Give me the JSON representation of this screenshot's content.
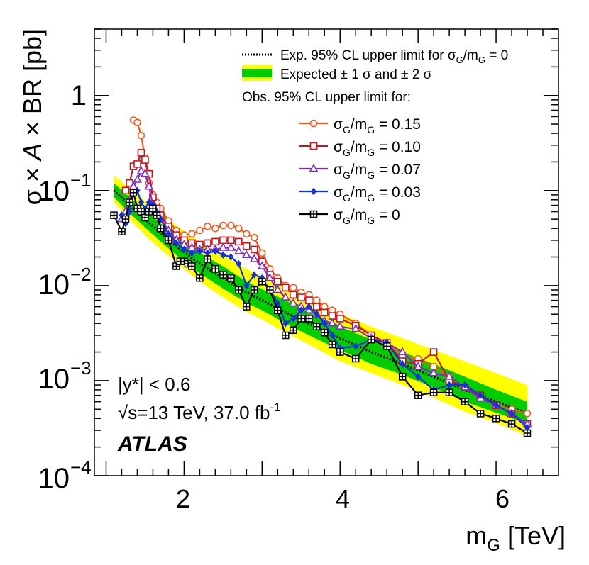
{
  "chart_data": {
    "type": "line",
    "y_scale": "log",
    "xlim": [
      0.85,
      6.8
    ],
    "ylim": [
      0.0001,
      5
    ],
    "xlabel": {
      "main": "m",
      "sub": "G",
      "unit": " [TeV]"
    },
    "ylabel": {
      "sigma": "σ × ",
      "A": "A",
      "rest": " × BR [pb]"
    },
    "x_ticks": [
      {
        "value": 2,
        "label": "2"
      },
      {
        "value": 4,
        "label": "4"
      },
      {
        "value": 6,
        "label": "6"
      }
    ],
    "y_ticks": [
      {
        "value": 1,
        "label": "1"
      },
      {
        "value": 0.1,
        "label_base": "10",
        "label_exp": "−1"
      },
      {
        "value": 0.01,
        "label_base": "10",
        "label_exp": "−2"
      },
      {
        "value": 0.001,
        "label_base": "10",
        "label_exp": "−3"
      },
      {
        "value": 0.0001,
        "label_base": "10",
        "label_exp": "−4"
      }
    ],
    "annotations": {
      "selection": "|y*| < 0.6",
      "energy_sqrt": "√s",
      "energy_rest": "=13 TeV, 37.0 fb",
      "lumi_exp": "-1",
      "experiment": "ATLAS"
    },
    "legend": {
      "position": "top-right",
      "expected_line": {
        "prefix": "Exp. 95% CL upper limit for σ",
        "sub1": "G",
        "mid": "/m",
        "sub2": "G",
        "suffix": " = 0"
      },
      "expected_bands": "Expected ± 1 σ and ± 2 σ",
      "observed_header": "Obs. 95% CL upper limit for:"
    },
    "expected": {
      "name": "Exp. 95% CL upper limit for σG/mG = 0",
      "x": [
        1.1,
        1.3,
        1.5,
        1.7,
        1.9,
        2.2,
        2.5,
        2.8,
        3.0,
        3.3,
        3.6,
        4.0,
        4.4,
        4.8,
        5.2,
        5.6,
        6.0,
        6.4
      ],
      "center": [
        0.1,
        0.07,
        0.05,
        0.036,
        0.026,
        0.017,
        0.012,
        0.0085,
        0.007,
        0.0052,
        0.004,
        0.0028,
        0.002,
        0.0015,
        0.0011,
        0.0008,
        0.0006,
        0.00045
      ],
      "band1_low": [
        0.085,
        0.058,
        0.041,
        0.029,
        0.021,
        0.0135,
        0.0093,
        0.0066,
        0.0055,
        0.004,
        0.003,
        0.0021,
        0.0015,
        0.00115,
        0.00085,
        0.0006,
        0.00046,
        0.00035
      ],
      "band1_high": [
        0.12,
        0.085,
        0.062,
        0.045,
        0.033,
        0.022,
        0.016,
        0.011,
        0.0092,
        0.007,
        0.0053,
        0.0037,
        0.0027,
        0.002,
        0.0015,
        0.0011,
        0.0008,
        0.0006
      ],
      "band2_low": [
        0.075,
        0.05,
        0.034,
        0.024,
        0.0175,
        0.011,
        0.0075,
        0.0053,
        0.0044,
        0.0032,
        0.0024,
        0.0016,
        0.0012,
        0.0009,
        0.00066,
        0.00047,
        0.00036,
        0.00026
      ],
      "band2_high": [
        0.145,
        0.105,
        0.078,
        0.058,
        0.043,
        0.029,
        0.021,
        0.015,
        0.0125,
        0.0095,
        0.0072,
        0.0051,
        0.0037,
        0.0028,
        0.0021,
        0.0016,
        0.0012,
        0.0009
      ]
    },
    "series": [
      {
        "name": "σG/mG = 0.15",
        "label": {
          "prefix": "σ",
          "sub1": "G",
          "mid": "/m",
          "sub2": "G",
          "suffix": " = 0.15"
        },
        "color": "#f05a1e",
        "marker": "circle",
        "x": [
          1.35,
          1.4,
          1.45,
          1.5,
          1.55,
          1.6,
          1.65,
          1.7,
          1.8,
          1.9,
          2.0,
          2.1,
          2.2,
          2.3,
          2.4,
          2.5,
          2.6,
          2.7,
          2.8,
          2.9,
          3.0,
          3.1,
          3.2,
          3.3,
          3.4,
          3.5,
          3.6,
          3.7,
          3.8,
          3.9,
          4.0,
          4.2,
          4.4,
          4.6,
          4.8,
          5.0,
          5.2,
          5.4,
          5.6,
          5.8,
          6.0,
          6.2,
          6.4
        ],
        "y": [
          0.55,
          0.52,
          0.38,
          0.22,
          0.12,
          0.09,
          0.075,
          0.065,
          0.048,
          0.038,
          0.034,
          0.035,
          0.038,
          0.042,
          0.04,
          0.043,
          0.043,
          0.04,
          0.035,
          0.032,
          0.022,
          0.015,
          0.012,
          0.01,
          0.0095,
          0.0085,
          0.008,
          0.007,
          0.006,
          0.0055,
          0.005,
          0.004,
          0.003,
          0.0025,
          0.0018,
          0.0017,
          0.0014,
          0.0011,
          0.00085,
          0.0007,
          0.00055,
          0.0005,
          0.00045
        ]
      },
      {
        "name": "σG/mG = 0.10",
        "label": {
          "prefix": "σ",
          "sub1": "G",
          "mid": "/m",
          "sub2": "G",
          "suffix": " = 0.10"
        },
        "color": "#c8141e",
        "marker": "square",
        "x": [
          1.25,
          1.3,
          1.35,
          1.4,
          1.45,
          1.5,
          1.55,
          1.6,
          1.65,
          1.7,
          1.8,
          1.9,
          2.0,
          2.1,
          2.2,
          2.3,
          2.4,
          2.5,
          2.6,
          2.7,
          2.8,
          2.9,
          3.0,
          3.1,
          3.2,
          3.3,
          3.4,
          3.5,
          3.6,
          3.7,
          3.8,
          3.9,
          4.0,
          4.2,
          4.4,
          4.6,
          4.8,
          5.0,
          5.2,
          5.4,
          5.6,
          5.8,
          6.0,
          6.2,
          6.4
        ],
        "y": [
          0.1,
          0.12,
          0.18,
          0.19,
          0.25,
          0.21,
          0.15,
          0.085,
          0.065,
          0.055,
          0.042,
          0.034,
          0.03,
          0.028,
          0.027,
          0.028,
          0.029,
          0.03,
          0.03,
          0.029,
          0.026,
          0.024,
          0.018,
          0.013,
          0.011,
          0.0095,
          0.008,
          0.0075,
          0.007,
          0.006,
          0.0052,
          0.0048,
          0.0045,
          0.0038,
          0.003,
          0.0025,
          0.0016,
          0.0015,
          0.002,
          0.001,
          0.00085,
          0.0007,
          0.00055,
          0.00045,
          0.00035
        ]
      },
      {
        "name": "σG/mG = 0.07",
        "label": {
          "prefix": "σ",
          "sub1": "G",
          "mid": "/m",
          "sub2": "G",
          "suffix": " = 0.07"
        },
        "color": "#7d2dc8",
        "marker": "triangle",
        "x": [
          1.2,
          1.25,
          1.3,
          1.35,
          1.4,
          1.45,
          1.5,
          1.55,
          1.6,
          1.65,
          1.7,
          1.8,
          1.9,
          2.0,
          2.1,
          2.2,
          2.3,
          2.4,
          2.5,
          2.6,
          2.7,
          2.8,
          2.9,
          3.0,
          3.1,
          3.2,
          3.3,
          3.4,
          3.5,
          3.6,
          3.7,
          3.8,
          3.9,
          4.0,
          4.2,
          4.4,
          4.6,
          4.8,
          5.0,
          5.2,
          5.4,
          5.6,
          5.8,
          6.0,
          6.2,
          6.4
        ],
        "y": [
          0.05,
          0.06,
          0.08,
          0.11,
          0.13,
          0.16,
          0.15,
          0.11,
          0.07,
          0.055,
          0.05,
          0.038,
          0.03,
          0.027,
          0.025,
          0.024,
          0.024,
          0.024,
          0.025,
          0.025,
          0.023,
          0.021,
          0.019,
          0.016,
          0.012,
          0.009,
          0.0075,
          0.0065,
          0.006,
          0.0055,
          0.005,
          0.0042,
          0.004,
          0.0037,
          0.0035,
          0.0028,
          0.0025,
          0.002,
          0.0014,
          0.0012,
          0.0011,
          0.00085,
          0.00065,
          0.00055,
          0.00045,
          0.00035
        ]
      },
      {
        "name": "σG/mG = 0.03",
        "label": {
          "prefix": "σ",
          "sub1": "G",
          "mid": "/m",
          "sub2": "G",
          "suffix": " = 0.03"
        },
        "color": "#1432dc",
        "marker": "diamond",
        "x": [
          1.2,
          1.25,
          1.3,
          1.35,
          1.4,
          1.45,
          1.5,
          1.55,
          1.6,
          1.65,
          1.7,
          1.8,
          1.9,
          2.0,
          2.1,
          2.2,
          2.3,
          2.4,
          2.5,
          2.6,
          2.7,
          2.8,
          2.9,
          3.0,
          3.1,
          3.2,
          3.3,
          3.4,
          3.5,
          3.6,
          3.7,
          3.8,
          3.9,
          4.0,
          4.2,
          4.4,
          4.6,
          4.8,
          5.0,
          5.2,
          5.4,
          5.6,
          5.8,
          6.0,
          6.2,
          6.4
        ],
        "y": [
          0.055,
          0.045,
          0.06,
          0.095,
          0.1,
          0.075,
          0.065,
          0.075,
          0.07,
          0.06,
          0.05,
          0.035,
          0.028,
          0.024,
          0.022,
          0.023,
          0.022,
          0.023,
          0.021,
          0.02,
          0.017,
          0.01,
          0.013,
          0.012,
          0.009,
          0.0065,
          0.004,
          0.0045,
          0.0055,
          0.006,
          0.005,
          0.004,
          0.003,
          0.0022,
          0.0023,
          0.0027,
          0.0025,
          0.0015,
          0.0011,
          0.0008,
          0.0009,
          0.0009,
          0.0007,
          0.00055,
          0.00045,
          0.00032
        ]
      },
      {
        "name": "σG/mG = 0",
        "label": {
          "prefix": "σ",
          "sub1": "G",
          "mid": "/m",
          "sub2": "G",
          "suffix": " = 0"
        },
        "color": "#000000",
        "marker": "cross",
        "x": [
          1.1,
          1.2,
          1.25,
          1.3,
          1.35,
          1.4,
          1.45,
          1.5,
          1.55,
          1.6,
          1.65,
          1.7,
          1.8,
          1.9,
          1.95,
          2.0,
          2.05,
          2.1,
          2.2,
          2.3,
          2.4,
          2.5,
          2.6,
          2.7,
          2.8,
          2.9,
          3.0,
          3.1,
          3.2,
          3.3,
          3.4,
          3.5,
          3.6,
          3.7,
          3.8,
          3.9,
          4.0,
          4.2,
          4.4,
          4.6,
          4.8,
          5.0,
          5.2,
          5.4,
          5.6,
          5.8,
          6.0,
          6.2,
          6.4
        ],
        "y": [
          0.055,
          0.037,
          0.05,
          0.075,
          0.095,
          0.065,
          0.06,
          0.052,
          0.06,
          0.065,
          0.055,
          0.04,
          0.03,
          0.016,
          0.018,
          0.018,
          0.017,
          0.016,
          0.012,
          0.019,
          0.015,
          0.013,
          0.012,
          0.009,
          0.006,
          0.009,
          0.011,
          0.009,
          0.0055,
          0.003,
          0.0034,
          0.0045,
          0.0045,
          0.0037,
          0.0032,
          0.0024,
          0.002,
          0.0017,
          0.0027,
          0.0023,
          0.0011,
          0.0007,
          0.00075,
          0.00075,
          0.0006,
          0.00045,
          0.0004,
          0.00035,
          0.00028
        ]
      }
    ]
  }
}
